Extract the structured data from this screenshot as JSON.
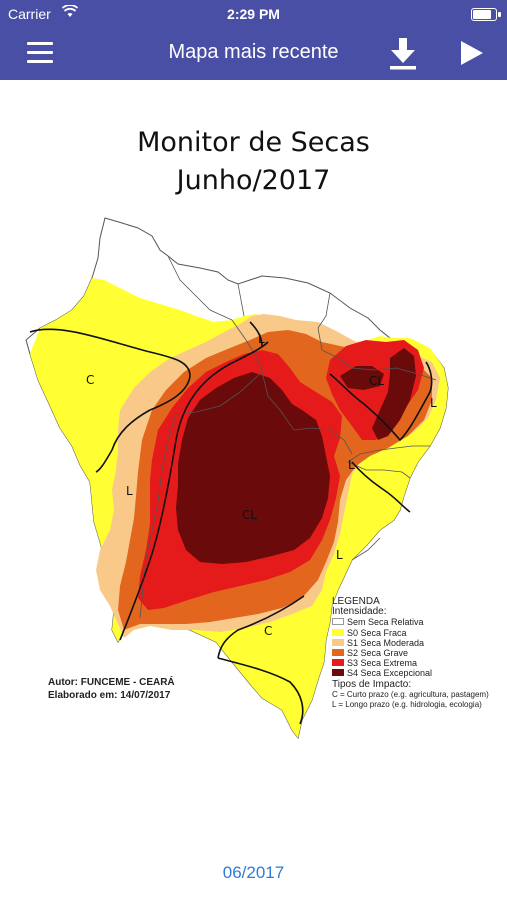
{
  "status_bar": {
    "carrier": "Carrier",
    "time": "2:29 PM",
    "battery_level": 0.9
  },
  "navbar": {
    "title": "Mapa mais recente",
    "menu_icon": "hamburger-icon",
    "download_icon": "download-icon",
    "play_icon": "play-icon"
  },
  "map": {
    "title_line1": "Monitor de Secas",
    "title_line2": "Junho/2017",
    "region_labels": [
      "C",
      "L",
      "L",
      "CL",
      "L",
      "L",
      "CL",
      "L",
      "C"
    ],
    "legend": {
      "heading": "LEGENDA",
      "intensity_heading": "Intensidade:",
      "items": [
        {
          "label": "Sem Seca Relativa",
          "color": "#ffffff"
        },
        {
          "label": "S0 Seca Fraca",
          "color": "#ffff33"
        },
        {
          "label": "S1 Seca Moderada",
          "color": "#f9c98a"
        },
        {
          "label": "S2 Seca Grave",
          "color": "#e2661d"
        },
        {
          "label": "S3 Seca Extrema",
          "color": "#e51a1a"
        },
        {
          "label": "S4 Seca Excepcional",
          "color": "#6a0a0a"
        }
      ],
      "impact_heading": "Tipos de Impacto:",
      "impact_items": [
        "C = Curto prazo (e.g. agricultura, pastagem)",
        "L = Longo prazo (e.g. hidrologia, ecologia)"
      ]
    },
    "author_line1": "Autor: FUNCEME - CEARÁ",
    "author_line2": "Elaborado em: 14/07/2017"
  },
  "footer": {
    "date": "06/2017"
  }
}
